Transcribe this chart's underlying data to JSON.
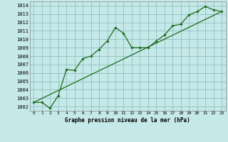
{
  "title": "Graphe pression niveau de la mer (hPa)",
  "bg_color": "#c5e8e8",
  "grid_color": "#90c0c0",
  "line_color": "#1a6b1a",
  "xlim": [
    -0.5,
    23.5
  ],
  "ylim": [
    1001.5,
    1014.5
  ],
  "yticks": [
    1002,
    1003,
    1004,
    1005,
    1006,
    1007,
    1008,
    1009,
    1010,
    1011,
    1012,
    1013,
    1014
  ],
  "xticks": [
    0,
    1,
    2,
    3,
    4,
    5,
    6,
    7,
    8,
    9,
    10,
    11,
    12,
    13,
    14,
    15,
    16,
    17,
    18,
    19,
    20,
    21,
    22,
    23
  ],
  "series1_x": [
    0,
    1,
    2,
    3,
    4,
    5,
    6,
    7,
    8,
    9,
    10,
    11,
    12,
    13,
    14,
    15,
    16,
    17,
    18,
    19,
    20,
    21,
    22,
    23
  ],
  "series1_y": [
    1002.5,
    1002.5,
    1001.8,
    1003.3,
    1006.4,
    1006.3,
    1007.7,
    1008.0,
    1008.8,
    1009.8,
    1011.4,
    1010.7,
    1009.0,
    1009.0,
    1009.0,
    1009.8,
    1010.5,
    1011.6,
    1011.8,
    1012.9,
    1013.3,
    1013.9,
    1013.5,
    1013.3
  ],
  "series2_x": [
    0,
    23
  ],
  "series2_y": [
    1002.5,
    1013.3
  ],
  "xlabel_fontsize": 5.5,
  "ytick_fontsize": 5,
  "xtick_fontsize": 4.5
}
